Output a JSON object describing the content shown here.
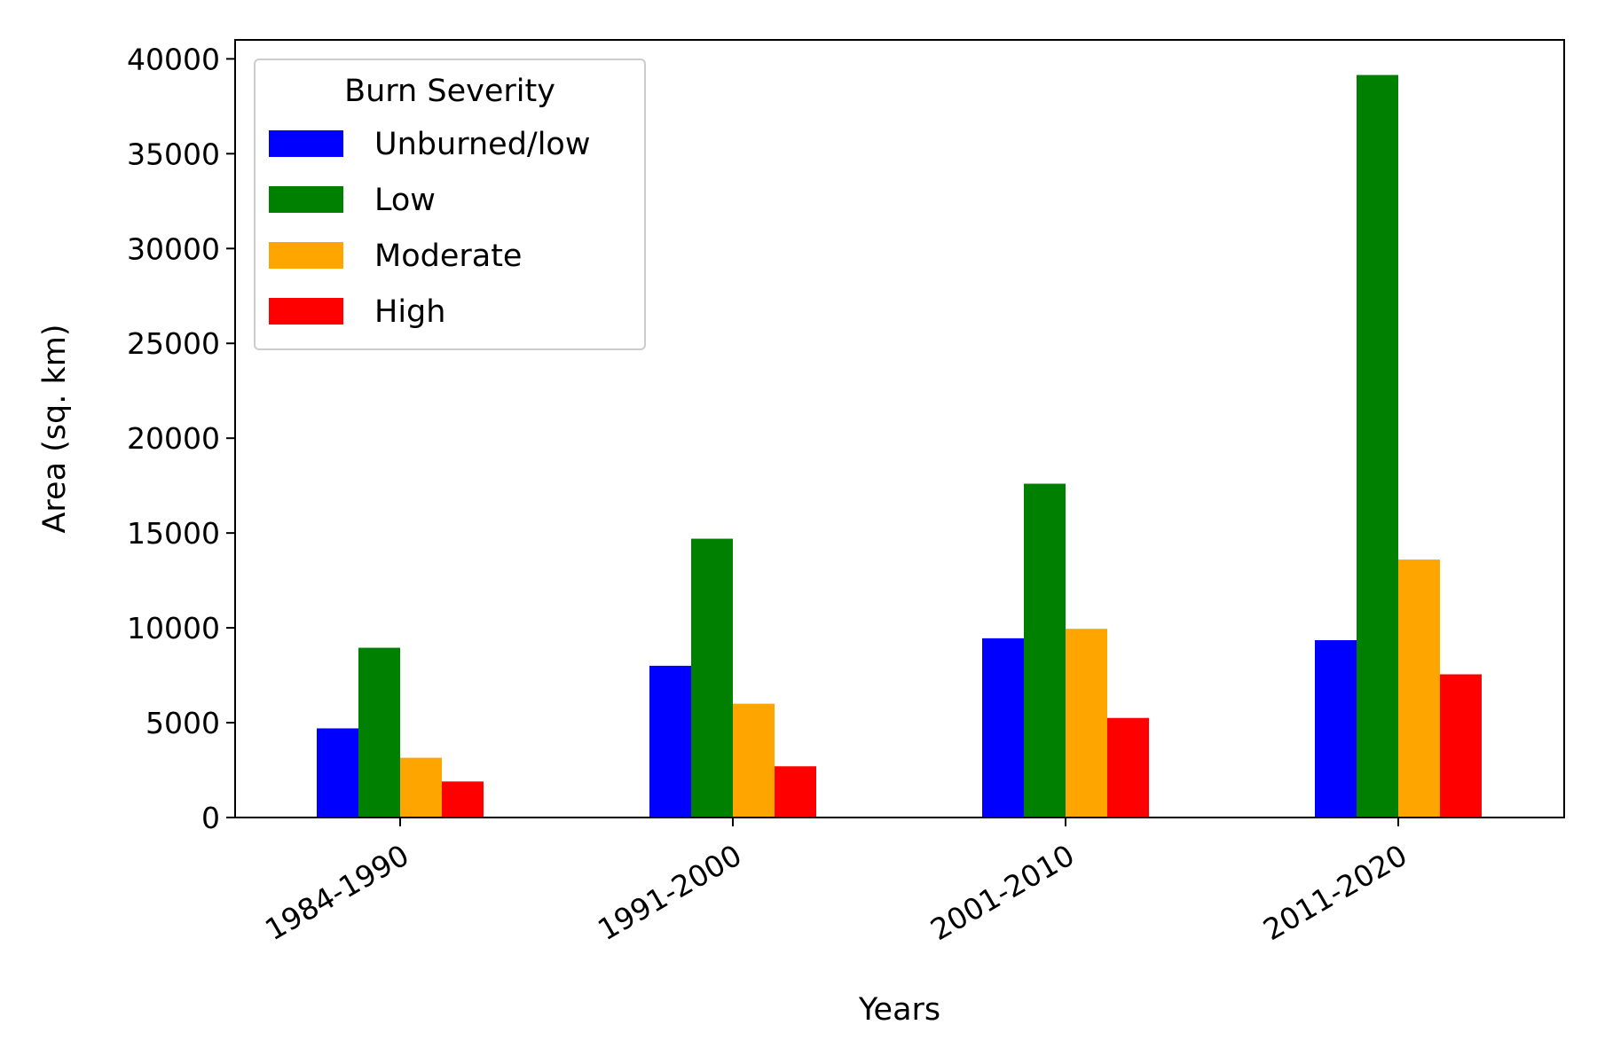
{
  "chart_data": {
    "type": "bar",
    "title": "",
    "xlabel": "Years",
    "ylabel": "Area (sq. km)",
    "categories": [
      "1984-1990",
      "1991-2000",
      "2001-2010",
      "2011-2020"
    ],
    "ylim": [
      0,
      41000
    ],
    "yticks": [
      0,
      5000,
      10000,
      15000,
      20000,
      25000,
      30000,
      35000,
      40000
    ],
    "grid": false,
    "legend": {
      "title": "Burn Severity",
      "placement": "top-left"
    },
    "series": [
      {
        "name": "Unburned/low",
        "color": "#0000ff",
        "values": [
          4700,
          8000,
          9450,
          9350
        ]
      },
      {
        "name": "Low",
        "color": "#008000",
        "values": [
          8950,
          14700,
          17600,
          39150
        ]
      },
      {
        "name": "Moderate",
        "color": "#ffa500",
        "values": [
          3150,
          6000,
          9950,
          13600
        ]
      },
      {
        "name": "High",
        "color": "#ff0000",
        "values": [
          1900,
          2700,
          5250,
          7550
        ]
      }
    ]
  }
}
